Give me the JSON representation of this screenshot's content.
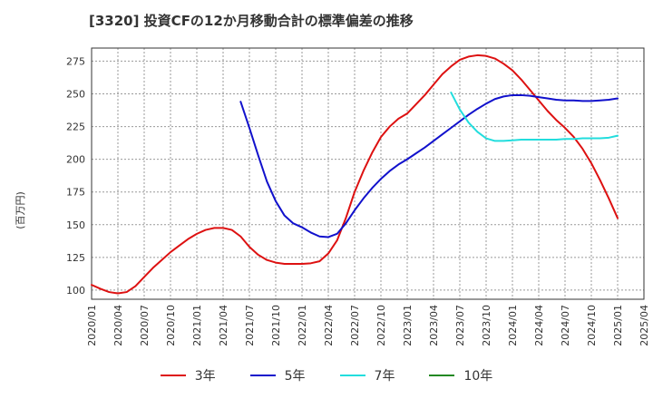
{
  "chart_data": {
    "type": "line",
    "title": "[3320]  投資CFの12か月移動合計の標準偏差の推移",
    "ylabel": "(百万円)",
    "xlabel": "",
    "ylim": [
      93,
      285
    ],
    "yticks": [
      100,
      125,
      150,
      175,
      200,
      225,
      250,
      275
    ],
    "xticks": [
      "2020/01",
      "2020/04",
      "2020/07",
      "2020/10",
      "2021/01",
      "2021/04",
      "2021/07",
      "2021/10",
      "2022/01",
      "2022/04",
      "2022/07",
      "2022/10",
      "2023/01",
      "2023/04",
      "2023/07",
      "2023/10",
      "2024/01",
      "2024/04",
      "2024/07",
      "2024/10",
      "2025/01",
      "2025/04"
    ],
    "grid": true,
    "legend_position": "bottom",
    "series": [
      {
        "name": "3年",
        "color": "#dd1111",
        "points": [
          [
            "2020/01",
            104
          ],
          [
            "2020/02",
            101
          ],
          [
            "2020/03",
            98.5
          ],
          [
            "2020/04",
            97.5
          ],
          [
            "2020/05",
            98.5
          ],
          [
            "2020/06",
            103
          ],
          [
            "2020/07",
            110
          ],
          [
            "2020/08",
            117
          ],
          [
            "2020/09",
            123
          ],
          [
            "2020/10",
            129
          ],
          [
            "2020/11",
            134
          ],
          [
            "2020/12",
            139
          ],
          [
            "2021/01",
            143
          ],
          [
            "2021/02",
            146
          ],
          [
            "2021/03",
            147.5
          ],
          [
            "2021/04",
            147.5
          ],
          [
            "2021/05",
            146
          ],
          [
            "2021/06",
            141
          ],
          [
            "2021/07",
            133
          ],
          [
            "2021/08",
            127
          ],
          [
            "2021/09",
            123
          ],
          [
            "2021/10",
            121
          ],
          [
            "2021/11",
            120
          ],
          [
            "2021/12",
            120
          ],
          [
            "2022/01",
            120
          ],
          [
            "2022/02",
            120.5
          ],
          [
            "2022/03",
            122
          ],
          [
            "2022/04",
            128
          ],
          [
            "2022/05",
            138
          ],
          [
            "2022/06",
            155
          ],
          [
            "2022/07",
            175
          ],
          [
            "2022/08",
            191
          ],
          [
            "2022/09",
            205
          ],
          [
            "2022/10",
            217
          ],
          [
            "2022/11",
            225
          ],
          [
            "2022/12",
            231
          ],
          [
            "2023/01",
            235
          ],
          [
            "2023/02",
            242
          ],
          [
            "2023/03",
            249
          ],
          [
            "2023/04",
            257
          ],
          [
            "2023/05",
            265
          ],
          [
            "2023/06",
            271
          ],
          [
            "2023/07",
            276
          ],
          [
            "2023/08",
            278.5
          ],
          [
            "2023/09",
            279.5
          ],
          [
            "2023/10",
            279
          ],
          [
            "2023/11",
            277
          ],
          [
            "2023/12",
            273
          ],
          [
            "2024/01",
            268
          ],
          [
            "2024/02",
            261
          ],
          [
            "2024/03",
            253
          ],
          [
            "2024/04",
            245
          ],
          [
            "2024/05",
            237
          ],
          [
            "2024/06",
            230
          ],
          [
            "2024/07",
            224
          ],
          [
            "2024/08",
            217
          ],
          [
            "2024/09",
            208
          ],
          [
            "2024/10",
            197
          ],
          [
            "2024/11",
            184
          ],
          [
            "2024/12",
            170
          ],
          [
            "2025/01",
            155
          ]
        ]
      },
      {
        "name": "5年",
        "color": "#1111cc",
        "points": [
          [
            "2021/06",
            244
          ],
          [
            "2021/07",
            224
          ],
          [
            "2021/08",
            203
          ],
          [
            "2021/09",
            183
          ],
          [
            "2021/10",
            168
          ],
          [
            "2021/11",
            157
          ],
          [
            "2021/12",
            151
          ],
          [
            "2022/01",
            148
          ],
          [
            "2022/02",
            144
          ],
          [
            "2022/03",
            141
          ],
          [
            "2022/04",
            140.5
          ],
          [
            "2022/05",
            143
          ],
          [
            "2022/06",
            151
          ],
          [
            "2022/07",
            161
          ],
          [
            "2022/08",
            170
          ],
          [
            "2022/09",
            178
          ],
          [
            "2022/10",
            185
          ],
          [
            "2022/11",
            191
          ],
          [
            "2022/12",
            196
          ],
          [
            "2023/01",
            200
          ],
          [
            "2023/02",
            204.5
          ],
          [
            "2023/03",
            209
          ],
          [
            "2023/04",
            214
          ],
          [
            "2023/05",
            219
          ],
          [
            "2023/06",
            224
          ],
          [
            "2023/07",
            229
          ],
          [
            "2023/08",
            234
          ],
          [
            "2023/09",
            238.5
          ],
          [
            "2023/10",
            242.5
          ],
          [
            "2023/11",
            246
          ],
          [
            "2023/12",
            248
          ],
          [
            "2024/01",
            249
          ],
          [
            "2024/02",
            249
          ],
          [
            "2024/03",
            248.5
          ],
          [
            "2024/04",
            247.5
          ],
          [
            "2024/05",
            246.5
          ],
          [
            "2024/06",
            245.5
          ],
          [
            "2024/07",
            245
          ],
          [
            "2024/08",
            245
          ],
          [
            "2024/09",
            244.5
          ],
          [
            "2024/10",
            244.5
          ],
          [
            "2024/11",
            245
          ],
          [
            "2024/12",
            245.5
          ],
          [
            "2025/01",
            246.5
          ]
        ]
      },
      {
        "name": "7年",
        "color": "#22dddd",
        "points": [
          [
            "2023/06",
            251
          ],
          [
            "2023/07",
            238
          ],
          [
            "2023/08",
            228
          ],
          [
            "2023/09",
            221
          ],
          [
            "2023/10",
            216
          ],
          [
            "2023/11",
            214
          ],
          [
            "2023/12",
            214
          ],
          [
            "2024/01",
            214.5
          ],
          [
            "2024/02",
            215
          ],
          [
            "2024/03",
            215
          ],
          [
            "2024/04",
            215
          ],
          [
            "2024/05",
            215
          ],
          [
            "2024/06",
            215
          ],
          [
            "2024/07",
            215.5
          ],
          [
            "2024/08",
            215.5
          ],
          [
            "2024/09",
            216
          ],
          [
            "2024/10",
            216
          ],
          [
            "2024/11",
            216
          ],
          [
            "2024/12",
            216.5
          ],
          [
            "2025/01",
            218
          ]
        ]
      },
      {
        "name": "10年",
        "color": "#228822",
        "points": []
      }
    ]
  }
}
